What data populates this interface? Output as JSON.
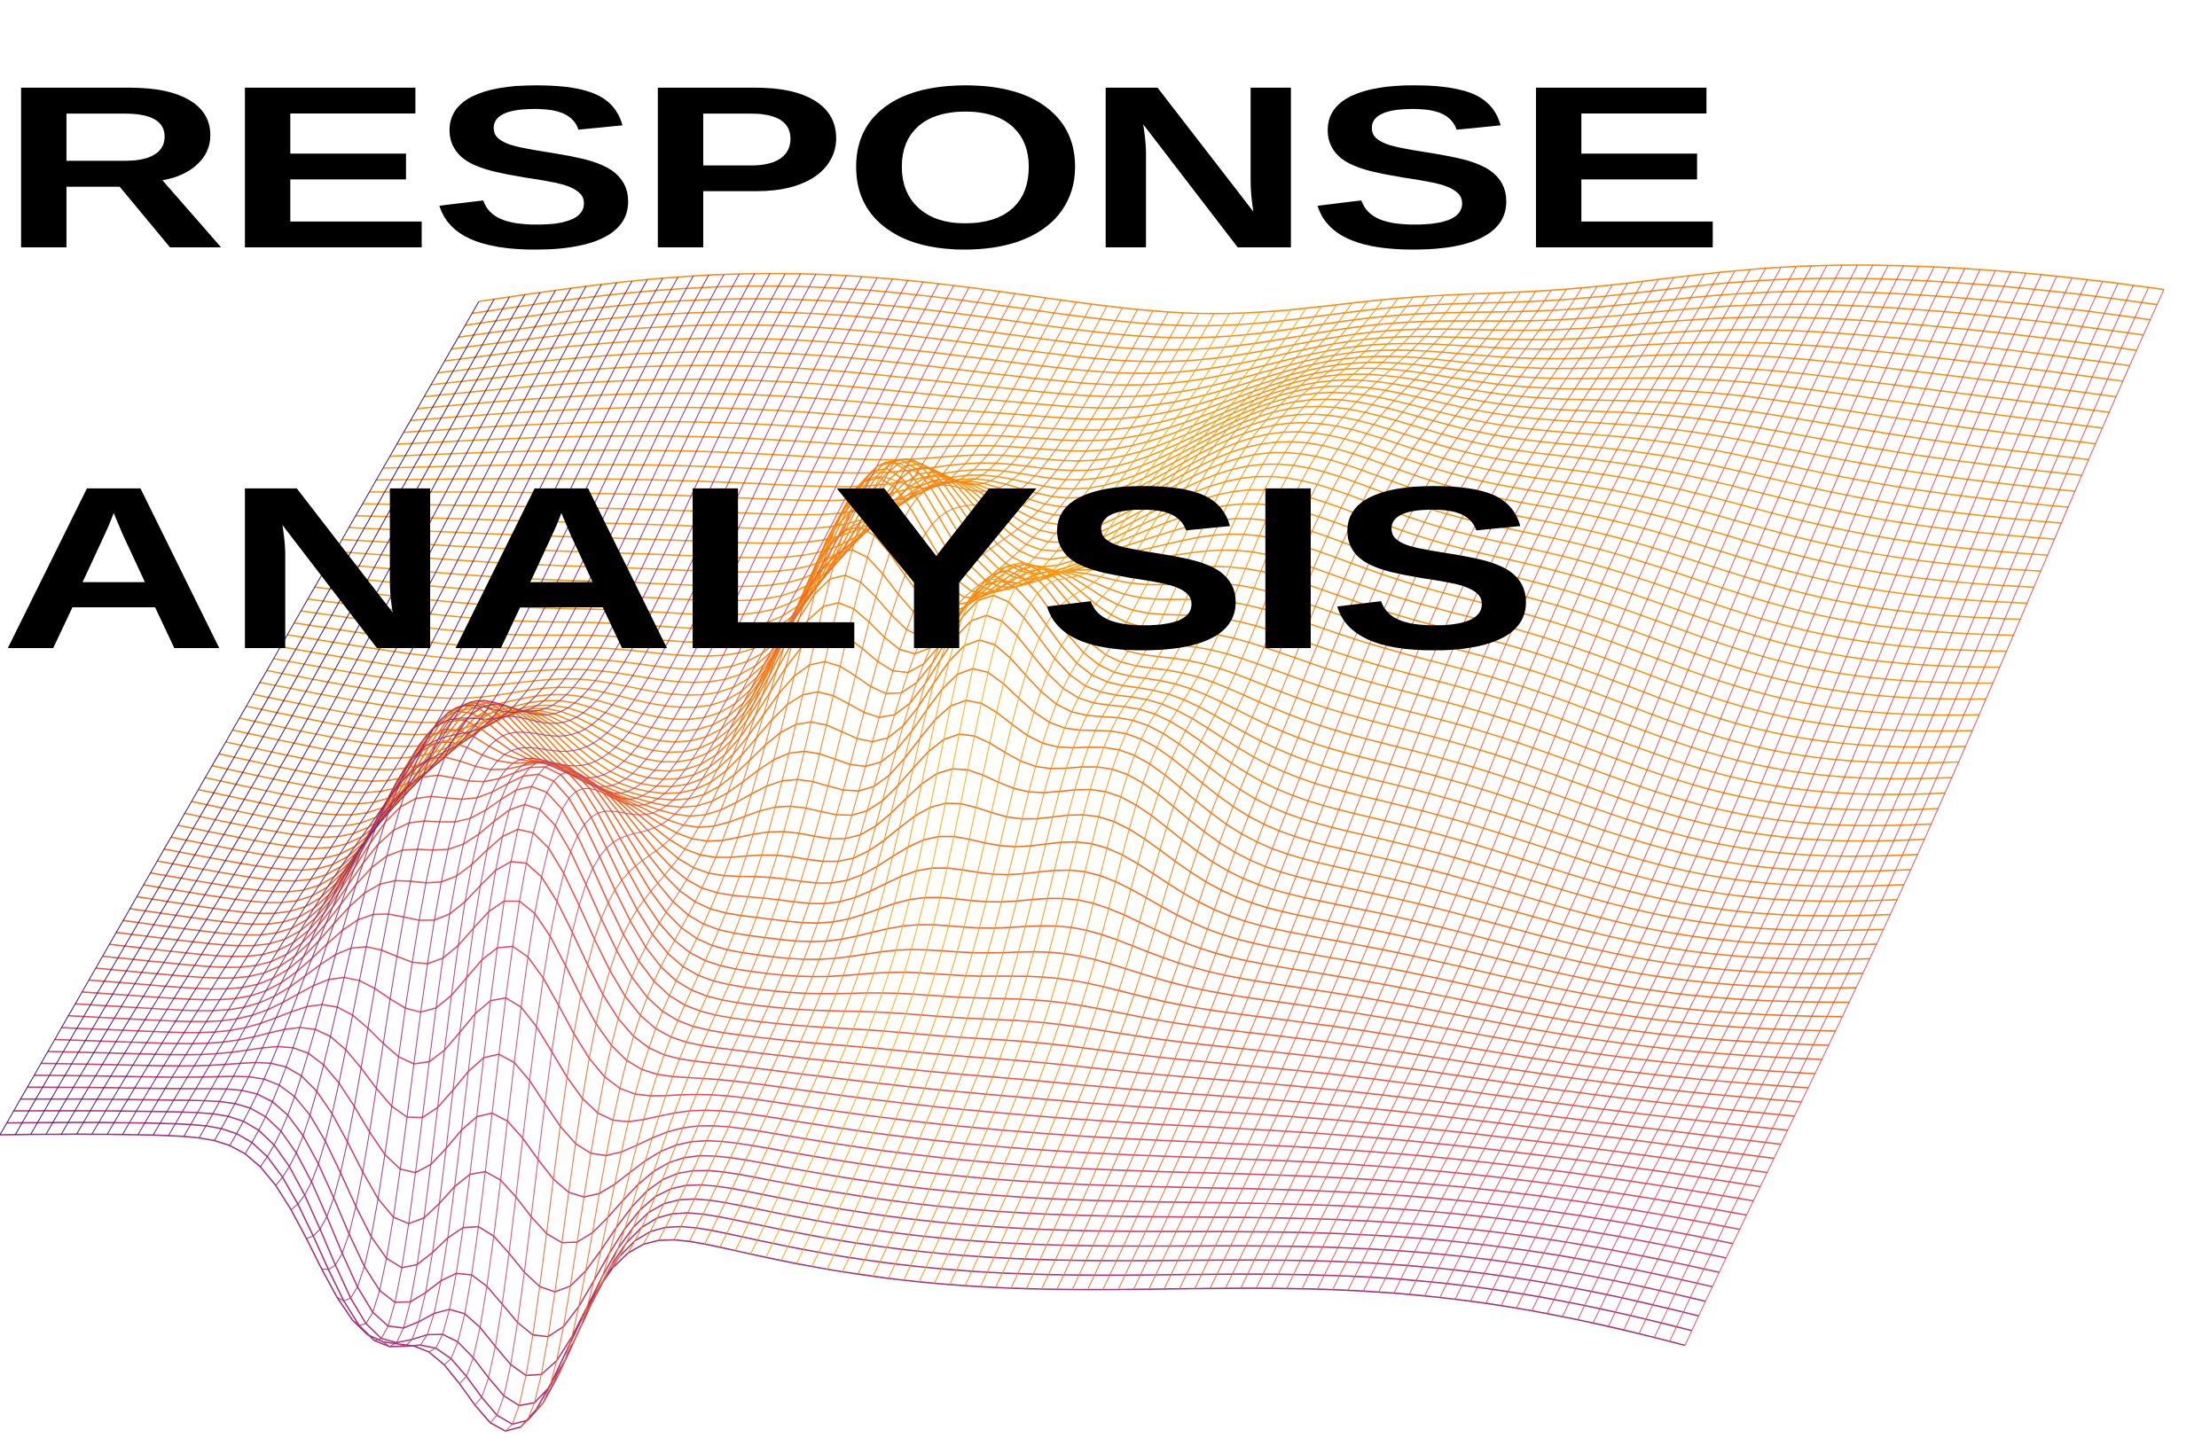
{
  "headline": {
    "line1": "RESPONSE",
    "line2": "ANALYSIS"
  },
  "colors": {
    "text": "#000000",
    "background": "#ffffff",
    "gradient_stops": [
      "#1a0a2e",
      "#3b0f70",
      "#8c2981",
      "#de4968",
      "#f7701c",
      "#fca50a",
      "#fbe14f"
    ]
  },
  "graphic": {
    "kind": "3d-wireframe-surface"
  }
}
